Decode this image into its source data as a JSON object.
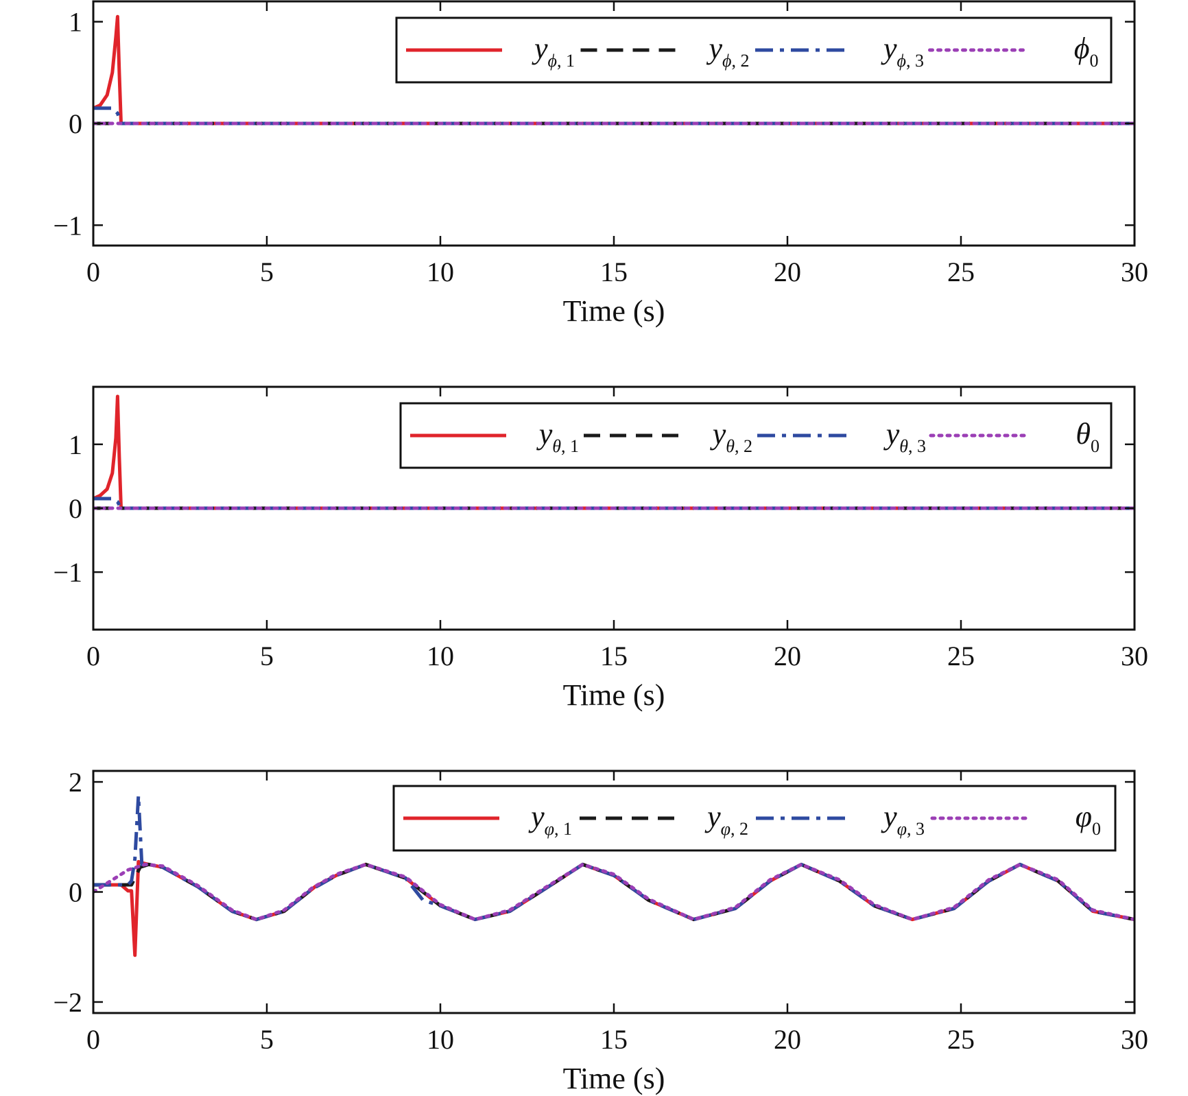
{
  "chart_data": [
    {
      "type": "line",
      "xlabel": "Time (s)",
      "xlim": [
        0,
        30
      ],
      "ylim": [
        -1.2,
        1.2
      ],
      "xticks": [
        "0",
        "5",
        "10",
        "15",
        "20",
        "25",
        "30"
      ],
      "yticks": [
        "1",
        "0",
        "−1"
      ],
      "ytick_values": [
        1,
        0,
        -1
      ],
      "legend_placement": "top-right",
      "series": [
        {
          "name": "y",
          "sub_symbol": "ϕ",
          "sub_num": "1",
          "color": "#e0242b",
          "style": "solid",
          "x": [
            0,
            0.2,
            0.4,
            0.55,
            0.65,
            0.7,
            0.75,
            0.8,
            1,
            30
          ],
          "y": [
            0.15,
            0.18,
            0.28,
            0.5,
            0.85,
            1.05,
            0.5,
            0,
            0,
            0
          ]
        },
        {
          "name": "y",
          "sub_symbol": "ϕ",
          "sub_num": "2",
          "color": "#1a1a1a",
          "style": "dashed",
          "x": [
            0,
            30
          ],
          "y": [
            0,
            0
          ]
        },
        {
          "name": "y",
          "sub_symbol": "ϕ",
          "sub_num": "3",
          "color": "#2e4aa0",
          "style": "dashdot",
          "x": [
            0,
            0.55,
            0.7,
            0.8,
            1,
            30
          ],
          "y": [
            0.15,
            0.15,
            0.1,
            0,
            0,
            0
          ]
        },
        {
          "name": "ϕ",
          "sub_symbol": "",
          "sub_num": "0",
          "color": "#9b3fb5",
          "style": "dotted",
          "x": [
            0,
            30
          ],
          "y": [
            0,
            0
          ]
        }
      ]
    },
    {
      "type": "line",
      "xlabel": "Time (s)",
      "xlim": [
        0,
        30
      ],
      "ylim": [
        -1.9,
        1.9
      ],
      "xticks": [
        "0",
        "5",
        "10",
        "15",
        "20",
        "25",
        "30"
      ],
      "yticks": [
        "1",
        "0",
        "−1"
      ],
      "ytick_values": [
        1,
        0,
        -1
      ],
      "legend_placement": "top-right",
      "series": [
        {
          "name": "y",
          "sub_symbol": "θ",
          "sub_num": "1",
          "color": "#e0242b",
          "style": "solid",
          "x": [
            0,
            0.2,
            0.4,
            0.55,
            0.65,
            0.7,
            0.75,
            0.8,
            1,
            30
          ],
          "y": [
            0.15,
            0.2,
            0.3,
            0.55,
            1.1,
            1.75,
            0.8,
            0,
            0,
            0
          ]
        },
        {
          "name": "y",
          "sub_symbol": "θ",
          "sub_num": "2",
          "color": "#1a1a1a",
          "style": "dashed",
          "x": [
            0,
            30
          ],
          "y": [
            0,
            0
          ]
        },
        {
          "name": "y",
          "sub_symbol": "θ",
          "sub_num": "3",
          "color": "#2e4aa0",
          "style": "dashdot",
          "x": [
            0,
            0.55,
            0.7,
            0.8,
            1,
            30
          ],
          "y": [
            0.15,
            0.15,
            0.1,
            0,
            0,
            0
          ]
        },
        {
          "name": "θ",
          "sub_symbol": "",
          "sub_num": "0",
          "color": "#9b3fb5",
          "style": "dotted",
          "x": [
            0,
            30
          ],
          "y": [
            0,
            0
          ]
        }
      ]
    },
    {
      "type": "line",
      "xlabel": "Time (s)",
      "xlim": [
        0,
        30
      ],
      "ylim": [
        -2.2,
        2.2
      ],
      "xticks": [
        "0",
        "5",
        "10",
        "15",
        "20",
        "25",
        "30"
      ],
      "yticks": [
        "2",
        "0",
        "−2"
      ],
      "ytick_values": [
        2,
        0,
        -2
      ],
      "legend_placement": "top-right",
      "series": [
        {
          "name": "y",
          "sub_symbol": "φ",
          "sub_num": "1",
          "color": "#e0242b",
          "style": "solid",
          "x": [
            0,
            0.8,
            1.0,
            1.1,
            1.2,
            1.3,
            1.4,
            1.6,
            2,
            3,
            4,
            4.7,
            5.5,
            6.3,
            6.4,
            7,
            7.85,
            9,
            10,
            11,
            12,
            13,
            14.1,
            15,
            16,
            17.3,
            18.5,
            19.5,
            20.4,
            21.5,
            22.5,
            23.6,
            24.8,
            25.8,
            26.7,
            27.8,
            28.8,
            30
          ],
          "y": [
            0.13,
            0.13,
            0.02,
            0.02,
            -1.15,
            0.55,
            0.53,
            0.5,
            0.45,
            0.1,
            -0.35,
            -0.5,
            -0.35,
            0.05,
            0.1,
            0.3,
            0.5,
            0.25,
            -0.25,
            -0.5,
            -0.35,
            0.05,
            0.5,
            0.3,
            -0.15,
            -0.5,
            -0.3,
            0.2,
            0.5,
            0.2,
            -0.25,
            -0.5,
            -0.3,
            0.2,
            0.5,
            0.2,
            -0.35,
            -0.5
          ]
        },
        {
          "name": "y",
          "sub_symbol": "φ",
          "sub_num": "2",
          "color": "#1a1a1a",
          "style": "dashed",
          "x": [
            0,
            1.1,
            1.35,
            1.6,
            2,
            3,
            4,
            4.7,
            5.5,
            6.3,
            7,
            7.85,
            9,
            10,
            11,
            12,
            13,
            14.1,
            15,
            16,
            17.3,
            18.5,
            19.5,
            20.4,
            21.5,
            22.5,
            23.6,
            24.8,
            25.8,
            26.7,
            27.8,
            28.8,
            30
          ],
          "y": [
            0.13,
            0.13,
            0.45,
            0.5,
            0.45,
            0.1,
            -0.35,
            -0.5,
            -0.35,
            0.05,
            0.3,
            0.5,
            0.25,
            -0.25,
            -0.5,
            -0.35,
            0.05,
            0.5,
            0.3,
            -0.15,
            -0.5,
            -0.3,
            0.2,
            0.5,
            0.2,
            -0.25,
            -0.5,
            -0.3,
            0.2,
            0.5,
            0.2,
            -0.35,
            -0.5
          ]
        },
        {
          "name": "y",
          "sub_symbol": "φ",
          "sub_num": "3",
          "color": "#2e4aa0",
          "style": "dashdot",
          "x": [
            0,
            1.0,
            1.1,
            1.2,
            1.3,
            1.4,
            1.6,
            2,
            3,
            4,
            4.7,
            5.5,
            6.3,
            7,
            7.85,
            9,
            9.5,
            10,
            11,
            12,
            13,
            14.1,
            15,
            16,
            17.3,
            18.5,
            19.5,
            20.4,
            21.5,
            22.5,
            23.6,
            24.8,
            25.8,
            26.7,
            27.8,
            28.8,
            30
          ],
          "y": [
            0.13,
            0.13,
            0.2,
            0.6,
            1.75,
            0.5,
            0.5,
            0.45,
            0.1,
            -0.35,
            -0.5,
            -0.35,
            0.05,
            0.3,
            0.5,
            0.25,
            -0.15,
            -0.25,
            -0.5,
            -0.35,
            0.05,
            0.5,
            0.3,
            -0.15,
            -0.5,
            -0.3,
            0.2,
            0.5,
            0.2,
            -0.25,
            -0.5,
            -0.3,
            0.2,
            0.5,
            0.2,
            -0.35,
            -0.5
          ]
        },
        {
          "name": "φ",
          "sub_symbol": "",
          "sub_num": "0",
          "color": "#9b3fb5",
          "style": "dotted",
          "x": [
            0,
            0.5,
            1.0,
            1.5,
            2,
            3,
            4,
            4.7,
            5.5,
            6.3,
            7,
            7.85,
            9,
            10,
            11,
            12,
            13,
            14.1,
            15,
            16,
            17.3,
            18.5,
            19.5,
            20.4,
            21.5,
            22.5,
            23.6,
            24.8,
            25.8,
            26.7,
            27.8,
            28.8,
            30
          ],
          "y": [
            0,
            0.2,
            0.4,
            0.5,
            0.47,
            0.12,
            -0.33,
            -0.5,
            -0.33,
            0.07,
            0.32,
            0.5,
            0.27,
            -0.23,
            -0.5,
            -0.33,
            0.07,
            0.5,
            0.32,
            -0.13,
            -0.5,
            -0.28,
            0.22,
            0.5,
            0.22,
            -0.23,
            -0.5,
            -0.28,
            0.22,
            0.5,
            0.22,
            -0.33,
            -0.5
          ]
        }
      ]
    }
  ]
}
